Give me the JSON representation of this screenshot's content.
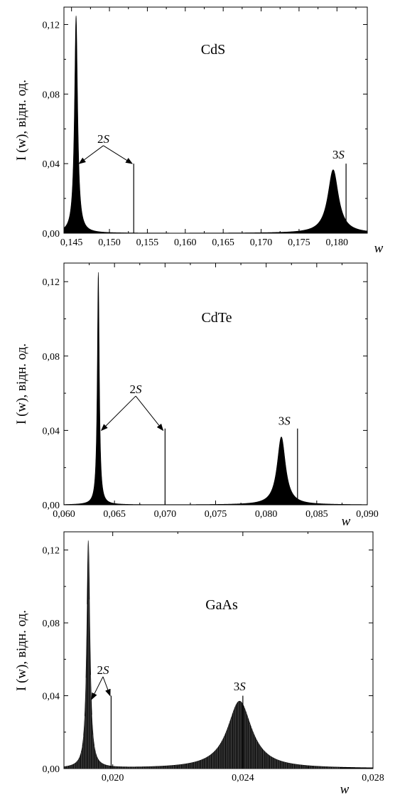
{
  "chart_data": [
    {
      "type": "line",
      "title": "CdS",
      "xlabel": "w",
      "ylabel": "I (w), відн. од.",
      "xlim": [
        0.144,
        0.184
      ],
      "ylim": [
        0,
        0.13
      ],
      "x_ticks": [
        "0,145",
        "0,150",
        "0,155",
        "0,160",
        "0,165",
        "0,170",
        "0,175",
        "0,180"
      ],
      "x_tick_values": [
        0.145,
        0.15,
        0.155,
        0.16,
        0.165,
        0.17,
        0.175,
        0.18
      ],
      "y_ticks": [
        "0,00",
        "0,04",
        "0,08",
        "0,12"
      ],
      "y_tick_values": [
        0,
        0.04,
        0.08,
        0.12
      ],
      "peaks": [
        {
          "center": 0.1456,
          "height": 0.125,
          "width": 0.00025
        },
        {
          "center": 0.1795,
          "height": 0.0365,
          "width": 0.00085
        }
      ],
      "lines": [
        {
          "x": 0.1532,
          "y": 0.04
        },
        {
          "x": 0.1812,
          "y": 0.04
        }
      ],
      "annotations": [
        {
          "text": "2S",
          "x": 0.1492,
          "y": 0.052,
          "arrows": [
            [
              0.146,
              0.04
            ],
            [
              0.153,
              0.04
            ]
          ]
        },
        {
          "text": "3S",
          "x": 0.1802,
          "y": 0.043,
          "arrows": []
        }
      ]
    },
    {
      "type": "line",
      "title": "CdTe",
      "xlabel": "w",
      "ylabel": "I (w), відн. од.",
      "xlim": [
        0.06,
        0.09
      ],
      "ylim": [
        0,
        0.13
      ],
      "x_ticks": [
        "0,060",
        "0,065",
        "0,070",
        "0,075",
        "0,080",
        "0,085",
        "0,090"
      ],
      "x_tick_values": [
        0.06,
        0.065,
        0.07,
        0.075,
        0.08,
        0.085,
        0.09
      ],
      "y_ticks": [
        "0,00",
        "0,04",
        "0,08",
        "0,12"
      ],
      "y_tick_values": [
        0,
        0.04,
        0.08,
        0.12
      ],
      "peaks": [
        {
          "center": 0.0634,
          "height": 0.125,
          "width": 0.00012
        },
        {
          "center": 0.0815,
          "height": 0.0365,
          "width": 0.0005
        }
      ],
      "lines": [
        {
          "x": 0.07,
          "y": 0.041
        },
        {
          "x": 0.0831,
          "y": 0.041
        }
      ],
      "annotations": [
        {
          "text": "2S",
          "x": 0.0671,
          "y": 0.06,
          "arrows": [
            [
              0.0637,
              0.04
            ],
            [
              0.0698,
              0.04
            ]
          ]
        },
        {
          "text": "3S",
          "x": 0.0818,
          "y": 0.043,
          "arrows": []
        }
      ]
    },
    {
      "type": "bar",
      "title": "GaAs",
      "xlabel": "w",
      "ylabel": "I (w), відн. од.",
      "xlim": [
        0.0185,
        0.028
      ],
      "ylim": [
        0,
        0.13
      ],
      "x_ticks": [
        "0,020",
        "0,024",
        "0,028"
      ],
      "x_tick_values": [
        0.02,
        0.024,
        0.028
      ],
      "y_ticks": [
        "0,00",
        "0,04",
        "0,08",
        "0,12"
      ],
      "y_tick_values": [
        0,
        0.04,
        0.08,
        0.12
      ],
      "peaks": [
        {
          "center": 0.01925,
          "height": 0.125,
          "width": 6e-05
        },
        {
          "center": 0.0239,
          "height": 0.037,
          "width": 0.00045
        }
      ],
      "lines": [
        {
          "x": 0.01995,
          "y": 0.04
        },
        {
          "x": 0.024,
          "y": 0.04
        }
      ],
      "annotations": [
        {
          "text": "2S",
          "x": 0.0197,
          "y": 0.052,
          "arrows": [
            [
              0.01935,
              0.038
            ],
            [
              0.01992,
              0.04
            ]
          ]
        },
        {
          "text": "3S",
          "x": 0.0239,
          "y": 0.043,
          "arrows": []
        }
      ]
    }
  ]
}
